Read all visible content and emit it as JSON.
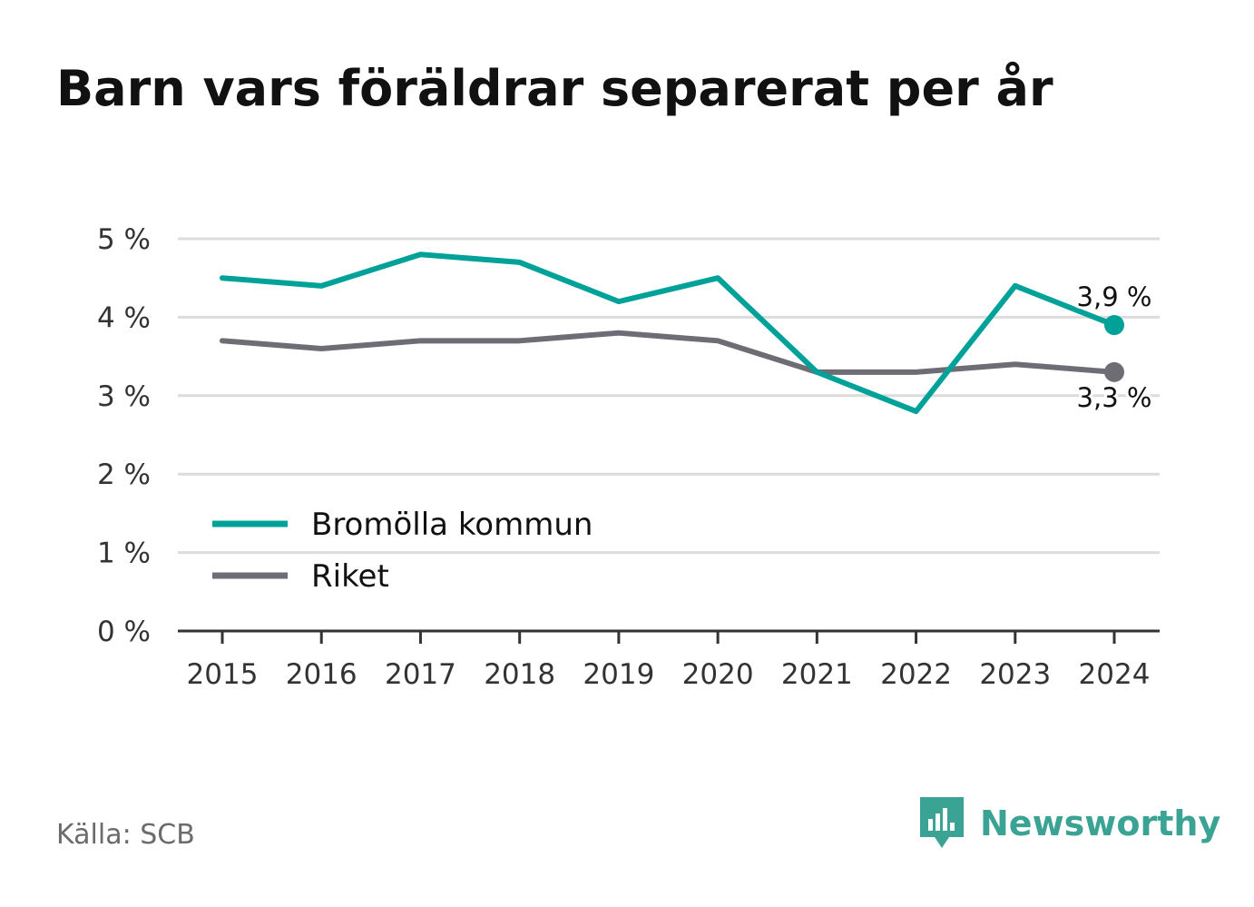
{
  "title": "Barn vars föräldrar separerat per år",
  "source": "Källa: SCB",
  "brand": {
    "name": "Newsworthy",
    "icon": "newsworthy-logo-icon",
    "color": "#3aa394"
  },
  "chart_data": {
    "type": "line",
    "title": "Barn vars föräldrar separerat per år",
    "x": [
      "2015",
      "2016",
      "2017",
      "2018",
      "2019",
      "2020",
      "2021",
      "2022",
      "2023",
      "2024"
    ],
    "ylim": [
      0,
      5
    ],
    "yticks": [
      0,
      1,
      2,
      3,
      4,
      5
    ],
    "ytick_labels": [
      "0 %",
      "1 %",
      "2 %",
      "3 %",
      "4 %",
      "5 %"
    ],
    "grid": true,
    "legend_position": "bottom-left",
    "series": [
      {
        "name": "Bromölla kommun",
        "color": "#00a199",
        "values": [
          4.5,
          4.4,
          4.8,
          4.7,
          4.2,
          4.5,
          3.3,
          2.8,
          4.4,
          3.9
        ],
        "end_label": "3,9 %"
      },
      {
        "name": "Riket",
        "color": "#6e6d76",
        "values": [
          3.7,
          3.6,
          3.7,
          3.7,
          3.8,
          3.7,
          3.3,
          3.3,
          3.4,
          3.3
        ],
        "end_label": "3,3 %"
      }
    ]
  }
}
